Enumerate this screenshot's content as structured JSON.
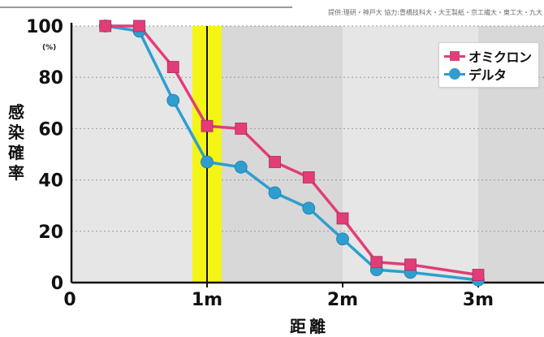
{
  "header": {
    "credit": "提供:理研・神戸大 協力:豊橋技科大・大王製紙・京工繊大・東工大・九大"
  },
  "chart_data": {
    "type": "line",
    "title": "",
    "xlabel": "距離",
    "ylabel": "感染確率",
    "y_unit": "(%)",
    "xlim": [
      0,
      3.4
    ],
    "ylim": [
      0,
      100
    ],
    "x_ticks": [
      {
        "value": 0,
        "label": "0"
      },
      {
        "value": 1,
        "label": "1m"
      },
      {
        "value": 2,
        "label": "2m"
      },
      {
        "value": 3,
        "label": "3m"
      }
    ],
    "y_ticks": [
      {
        "value": 0,
        "label": "0"
      },
      {
        "value": 20,
        "label": "20"
      },
      {
        "value": 40,
        "label": "40"
      },
      {
        "value": 60,
        "label": "60"
      },
      {
        "value": 80,
        "label": "80"
      },
      {
        "value": 100,
        "label": "100"
      }
    ],
    "grid": "horizontal dashed",
    "highlight": {
      "x": 1,
      "color": "#f5f515"
    },
    "legend_position": "top-right",
    "series": [
      {
        "name": "オミクロン",
        "color": "#e23d78",
        "marker": "square",
        "x": [
          0.25,
          0.5,
          0.75,
          1.0,
          1.25,
          1.5,
          1.75,
          2.0,
          2.25,
          2.5,
          3.0
        ],
        "y": [
          100,
          100,
          84,
          61,
          60,
          47,
          41,
          25,
          8,
          7,
          3
        ]
      },
      {
        "name": "デルタ",
        "color": "#2f9ecf",
        "marker": "circle",
        "x": [
          0.25,
          0.5,
          0.75,
          1.0,
          1.25,
          1.5,
          1.75,
          2.0,
          2.25,
          2.5,
          3.0
        ],
        "y": [
          100,
          98,
          71,
          47,
          45,
          35,
          29,
          17,
          5,
          4,
          1
        ]
      }
    ],
    "colors": {
      "band_light": "#e6e6e6",
      "band_dark": "#d8d8d8",
      "axis": "#111111"
    }
  }
}
